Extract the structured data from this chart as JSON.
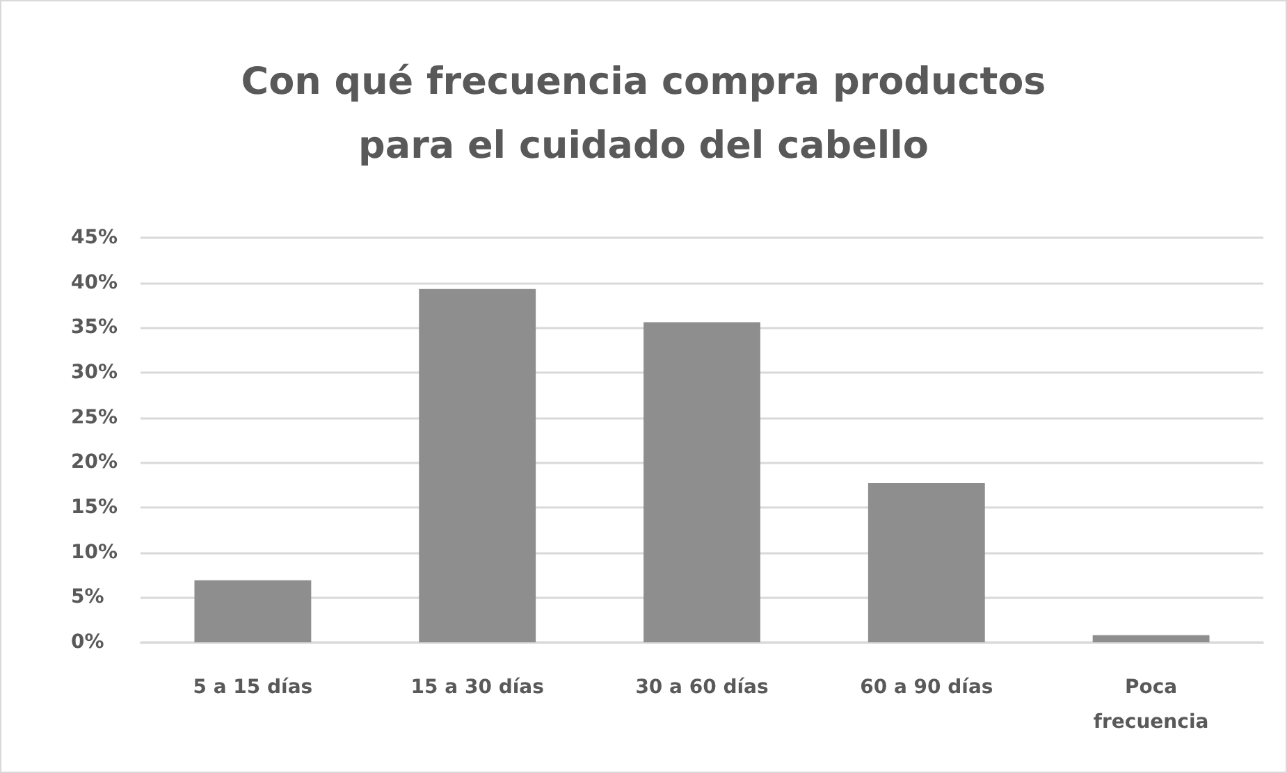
{
  "chart_data": {
    "type": "bar",
    "title": "Con qué frecuencia compra productos\npara el cuidado del cabello",
    "categories": [
      "5 a 15 días",
      "15 a 30 días",
      "30 a 60 días",
      "60 a 90 días",
      "Poca\nfrecuencia"
    ],
    "values": [
      6.9,
      39.3,
      35.6,
      17.7,
      0.8
    ],
    "color": "#8e8e8e",
    "ylim": [
      0,
      45
    ],
    "yticks": [
      {
        "value": 0,
        "label": "0%"
      },
      {
        "value": 5,
        "label": "5%"
      },
      {
        "value": 10,
        "label": "10%"
      },
      {
        "value": 15,
        "label": "15%"
      },
      {
        "value": 20,
        "label": "20%"
      },
      {
        "value": 25,
        "label": "25%"
      },
      {
        "value": 30,
        "label": "30%"
      },
      {
        "value": 35,
        "label": "35%"
      },
      {
        "value": 40,
        "label": "40%"
      },
      {
        "value": 45,
        "label": "45%"
      }
    ],
    "grid": true
  }
}
